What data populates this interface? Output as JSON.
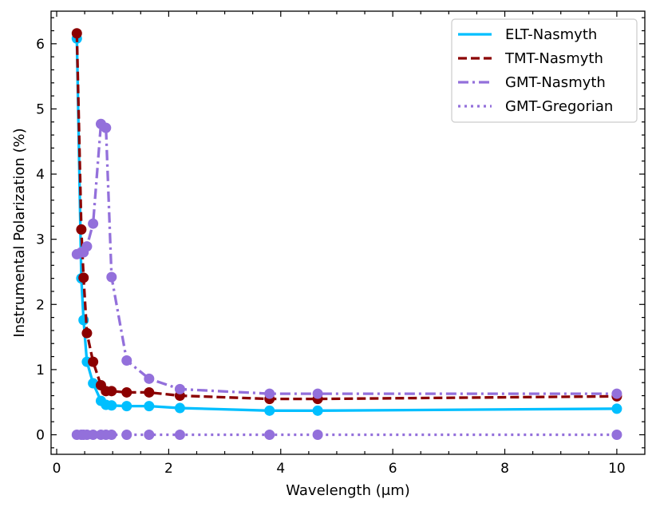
{
  "chart_data": {
    "type": "line",
    "title": "",
    "xlabel": "Wavelength (μm)",
    "ylabel": "Instrumental Polarization (%)",
    "xlim": [
      -0.1,
      10.5
    ],
    "ylim": [
      -0.3,
      6.5
    ],
    "xticks": [
      0,
      2,
      4,
      6,
      8,
      10
    ],
    "yticks": [
      0,
      1,
      2,
      3,
      4,
      5,
      6
    ],
    "grid": false,
    "legend_position": "top-right",
    "series": [
      {
        "name": "ELT-Nasmyth",
        "color": "#00bfff",
        "linestyle": "solid",
        "marker": "circle",
        "x": [
          0.36,
          0.44,
          0.48,
          0.54,
          0.65,
          0.79,
          0.88,
          0.98,
          1.25,
          1.65,
          2.2,
          3.8,
          4.66,
          10.0
        ],
        "y": [
          6.08,
          2.4,
          1.76,
          1.12,
          0.79,
          0.52,
          0.46,
          0.45,
          0.44,
          0.44,
          0.41,
          0.37,
          0.37,
          0.4
        ]
      },
      {
        "name": "TMT-Nasmyth",
        "color": "#8b0000",
        "linestyle": "dashed",
        "marker": "circle",
        "x": [
          0.36,
          0.44,
          0.48,
          0.54,
          0.65,
          0.79,
          0.88,
          0.98,
          1.25,
          1.65,
          2.2,
          3.8,
          4.66,
          10.0
        ],
        "y": [
          6.16,
          3.15,
          2.41,
          1.56,
          1.12,
          0.76,
          0.67,
          0.67,
          0.65,
          0.65,
          0.6,
          0.55,
          0.55,
          0.59
        ]
      },
      {
        "name": "GMT-Nasmyth",
        "color": "#9370db",
        "linestyle": "dashdot",
        "marker": "circle",
        "x": [
          0.36,
          0.44,
          0.48,
          0.54,
          0.65,
          0.79,
          0.88,
          0.98,
          1.25,
          1.65,
          2.2,
          3.8,
          4.66,
          10.0
        ],
        "y": [
          2.77,
          2.8,
          2.8,
          2.89,
          3.24,
          4.77,
          4.71,
          2.42,
          1.14,
          0.86,
          0.7,
          0.63,
          0.63,
          0.63
        ]
      },
      {
        "name": "GMT-Gregorian",
        "color": "#9370db",
        "linestyle": "dotted",
        "marker": "circle",
        "x": [
          0.36,
          0.44,
          0.48,
          0.54,
          0.65,
          0.79,
          0.88,
          0.98,
          1.25,
          1.65,
          2.2,
          3.8,
          4.66,
          10.0
        ],
        "y": [
          0.0,
          0.0,
          0.0,
          0.0,
          0.0,
          0.0,
          0.0,
          0.0,
          0.0,
          0.0,
          0.0,
          0.0,
          0.0,
          0.0
        ]
      }
    ]
  }
}
